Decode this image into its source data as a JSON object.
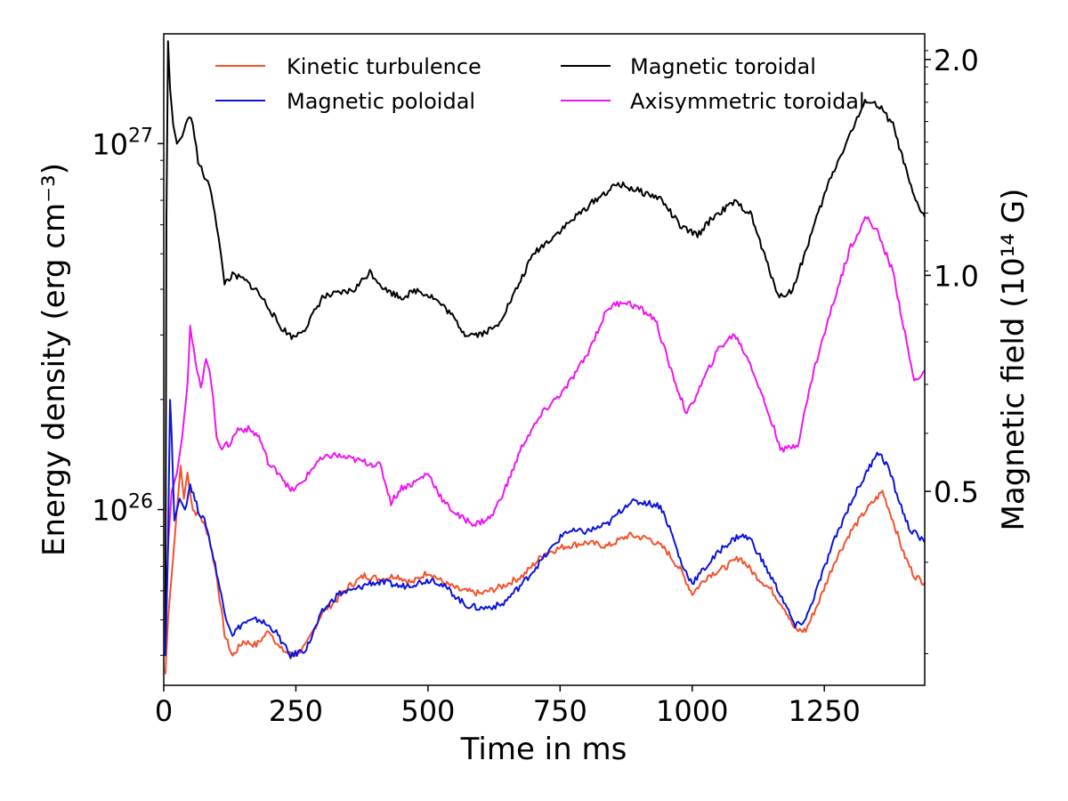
{
  "chart_data": {
    "type": "line",
    "xlabel": "Time in ms",
    "ylabel_left": "Energy density (erg cm⁻³)",
    "ylabel_right": "Magnetic field (10¹⁴ G)",
    "xlim": [
      0,
      1440
    ],
    "ylim_left_log10": [
      25.52,
      27.3
    ],
    "y_scale_left": "log",
    "x_ticks": [
      0,
      250,
      500,
      750,
      1000,
      1250
    ],
    "y_ticks_left": [
      {
        "value_log10": 26,
        "base": "10",
        "exp": "26"
      },
      {
        "value_log10": 27,
        "base": "10",
        "exp": "27"
      }
    ],
    "y_ticks_right": [
      {
        "label": "0.5",
        "value_log10": 26.05
      },
      {
        "label": "1.0",
        "value_log10": 26.64
      },
      {
        "label": "2.0",
        "value_log10": 27.23
      }
    ],
    "legend_position": "top",
    "series": [
      {
        "name": "Kinetic turbulence",
        "color": "#f4512c",
        "points": [
          [
            3,
            25.55
          ],
          [
            8,
            25.7
          ],
          [
            15,
            25.82
          ],
          [
            25,
            26.0
          ],
          [
            32,
            26.12
          ],
          [
            38,
            26.03
          ],
          [
            45,
            26.1
          ],
          [
            55,
            26.0
          ],
          [
            70,
            25.98
          ],
          [
            85,
            25.93
          ],
          [
            100,
            25.82
          ],
          [
            115,
            25.66
          ],
          [
            130,
            25.6
          ],
          [
            150,
            25.64
          ],
          [
            175,
            25.63
          ],
          [
            200,
            25.67
          ],
          [
            220,
            25.62
          ],
          [
            245,
            25.6
          ],
          [
            270,
            25.63
          ],
          [
            300,
            25.72
          ],
          [
            325,
            25.75
          ],
          [
            350,
            25.79
          ],
          [
            380,
            25.82
          ],
          [
            410,
            25.81
          ],
          [
            440,
            25.82
          ],
          [
            470,
            25.8
          ],
          [
            500,
            25.83
          ],
          [
            530,
            25.8
          ],
          [
            560,
            25.78
          ],
          [
            600,
            25.77
          ],
          [
            640,
            25.79
          ],
          [
            680,
            25.82
          ],
          [
            720,
            25.88
          ],
          [
            760,
            25.9
          ],
          [
            800,
            25.91
          ],
          [
            840,
            25.9
          ],
          [
            880,
            25.93
          ],
          [
            920,
            25.92
          ],
          [
            950,
            25.89
          ],
          [
            980,
            25.83
          ],
          [
            1000,
            25.77
          ],
          [
            1030,
            25.82
          ],
          [
            1060,
            25.84
          ],
          [
            1090,
            25.87
          ],
          [
            1120,
            25.82
          ],
          [
            1150,
            25.78
          ],
          [
            1175,
            25.73
          ],
          [
            1195,
            25.67
          ],
          [
            1215,
            25.67
          ],
          [
            1240,
            25.75
          ],
          [
            1270,
            25.86
          ],
          [
            1300,
            25.94
          ],
          [
            1330,
            26.0
          ],
          [
            1360,
            26.05
          ],
          [
            1380,
            25.97
          ],
          [
            1400,
            25.88
          ],
          [
            1420,
            25.82
          ],
          [
            1440,
            25.8
          ]
        ]
      },
      {
        "name": "Magnetic poloidal",
        "color": "#0a14dc",
        "points": [
          [
            3,
            25.6
          ],
          [
            8,
            25.9
          ],
          [
            12,
            26.3
          ],
          [
            15,
            26.2
          ],
          [
            20,
            25.97
          ],
          [
            30,
            26.03
          ],
          [
            40,
            26.0
          ],
          [
            50,
            26.07
          ],
          [
            65,
            26.0
          ],
          [
            80,
            25.96
          ],
          [
            100,
            25.83
          ],
          [
            115,
            25.72
          ],
          [
            130,
            25.66
          ],
          [
            150,
            25.69
          ],
          [
            180,
            25.7
          ],
          [
            210,
            25.67
          ],
          [
            240,
            25.6
          ],
          [
            270,
            25.62
          ],
          [
            300,
            25.72
          ],
          [
            330,
            25.77
          ],
          [
            360,
            25.78
          ],
          [
            390,
            25.8
          ],
          [
            420,
            25.8
          ],
          [
            450,
            25.79
          ],
          [
            480,
            25.8
          ],
          [
            510,
            25.81
          ],
          [
            540,
            25.78
          ],
          [
            570,
            25.74
          ],
          [
            600,
            25.73
          ],
          [
            640,
            25.74
          ],
          [
            680,
            25.8
          ],
          [
            720,
            25.87
          ],
          [
            760,
            25.94
          ],
          [
            800,
            25.94
          ],
          [
            840,
            25.96
          ],
          [
            880,
            26.02
          ],
          [
            910,
            26.02
          ],
          [
            940,
            26.01
          ],
          [
            960,
            25.94
          ],
          [
            980,
            25.85
          ],
          [
            1000,
            25.8
          ],
          [
            1030,
            25.85
          ],
          [
            1060,
            25.9
          ],
          [
            1090,
            25.93
          ],
          [
            1110,
            25.92
          ],
          [
            1140,
            25.84
          ],
          [
            1170,
            25.76
          ],
          [
            1195,
            25.68
          ],
          [
            1215,
            25.7
          ],
          [
            1240,
            25.8
          ],
          [
            1270,
            25.92
          ],
          [
            1300,
            26.02
          ],
          [
            1330,
            26.1
          ],
          [
            1350,
            26.16
          ],
          [
            1370,
            26.12
          ],
          [
            1390,
            26.03
          ],
          [
            1410,
            25.95
          ],
          [
            1440,
            25.91
          ]
        ]
      },
      {
        "name": "Magnetic toroidal",
        "color": "#000000",
        "points": [
          [
            3,
            25.6
          ],
          [
            5,
            26.8
          ],
          [
            8,
            27.28
          ],
          [
            12,
            27.15
          ],
          [
            18,
            27.05
          ],
          [
            25,
            27.0
          ],
          [
            35,
            27.02
          ],
          [
            45,
            27.07
          ],
          [
            55,
            27.06
          ],
          [
            65,
            26.95
          ],
          [
            80,
            26.9
          ],
          [
            90,
            26.87
          ],
          [
            100,
            26.78
          ],
          [
            115,
            26.62
          ],
          [
            130,
            26.64
          ],
          [
            150,
            26.63
          ],
          [
            175,
            26.6
          ],
          [
            200,
            26.55
          ],
          [
            220,
            26.5
          ],
          [
            245,
            26.47
          ],
          [
            270,
            26.5
          ],
          [
            300,
            26.58
          ],
          [
            330,
            26.59
          ],
          [
            360,
            26.6
          ],
          [
            390,
            26.65
          ],
          [
            420,
            26.6
          ],
          [
            450,
            26.58
          ],
          [
            480,
            26.6
          ],
          [
            510,
            26.58
          ],
          [
            540,
            26.54
          ],
          [
            570,
            26.48
          ],
          [
            600,
            26.48
          ],
          [
            630,
            26.5
          ],
          [
            660,
            26.58
          ],
          [
            700,
            26.7
          ],
          [
            740,
            26.75
          ],
          [
            780,
            26.8
          ],
          [
            820,
            26.85
          ],
          [
            860,
            26.89
          ],
          [
            900,
            26.87
          ],
          [
            940,
            26.85
          ],
          [
            980,
            26.77
          ],
          [
            1010,
            26.75
          ],
          [
            1040,
            26.8
          ],
          [
            1080,
            26.84
          ],
          [
            1110,
            26.81
          ],
          [
            1140,
            26.68
          ],
          [
            1165,
            26.58
          ],
          [
            1190,
            26.6
          ],
          [
            1220,
            26.73
          ],
          [
            1260,
            26.9
          ],
          [
            1300,
            27.03
          ],
          [
            1330,
            27.12
          ],
          [
            1355,
            27.1
          ],
          [
            1380,
            27.05
          ],
          [
            1400,
            26.95
          ],
          [
            1420,
            26.85
          ],
          [
            1440,
            26.8
          ]
        ]
      },
      {
        "name": "Axisymmetric toroidal",
        "color": "#f014f0",
        "points": [
          [
            3,
            25.6
          ],
          [
            8,
            25.9
          ],
          [
            15,
            26.05
          ],
          [
            25,
            26.1
          ],
          [
            35,
            26.2
          ],
          [
            45,
            26.35
          ],
          [
            50,
            26.5
          ],
          [
            60,
            26.4
          ],
          [
            70,
            26.33
          ],
          [
            80,
            26.42
          ],
          [
            90,
            26.35
          ],
          [
            100,
            26.2
          ],
          [
            110,
            26.17
          ],
          [
            125,
            26.18
          ],
          [
            140,
            26.22
          ],
          [
            160,
            26.22
          ],
          [
            180,
            26.2
          ],
          [
            200,
            26.12
          ],
          [
            220,
            26.1
          ],
          [
            240,
            26.05
          ],
          [
            260,
            26.07
          ],
          [
            290,
            26.13
          ],
          [
            320,
            26.15
          ],
          [
            350,
            26.14
          ],
          [
            380,
            26.13
          ],
          [
            410,
            26.12
          ],
          [
            430,
            26.02
          ],
          [
            450,
            26.06
          ],
          [
            470,
            26.07
          ],
          [
            500,
            26.1
          ],
          [
            530,
            26.02
          ],
          [
            560,
            25.98
          ],
          [
            590,
            25.96
          ],
          [
            620,
            25.98
          ],
          [
            650,
            26.07
          ],
          [
            680,
            26.18
          ],
          [
            720,
            26.27
          ],
          [
            760,
            26.33
          ],
          [
            800,
            26.42
          ],
          [
            840,
            26.55
          ],
          [
            870,
            26.57
          ],
          [
            900,
            26.55
          ],
          [
            930,
            26.52
          ],
          [
            960,
            26.38
          ],
          [
            990,
            26.26
          ],
          [
            1020,
            26.35
          ],
          [
            1050,
            26.44
          ],
          [
            1080,
            26.48
          ],
          [
            1110,
            26.4
          ],
          [
            1140,
            26.28
          ],
          [
            1170,
            26.16
          ],
          [
            1200,
            26.18
          ],
          [
            1230,
            26.38
          ],
          [
            1270,
            26.58
          ],
          [
            1300,
            26.72
          ],
          [
            1330,
            26.8
          ],
          [
            1350,
            26.76
          ],
          [
            1380,
            26.65
          ],
          [
            1400,
            26.5
          ],
          [
            1420,
            26.35
          ],
          [
            1440,
            26.38
          ]
        ]
      }
    ]
  }
}
